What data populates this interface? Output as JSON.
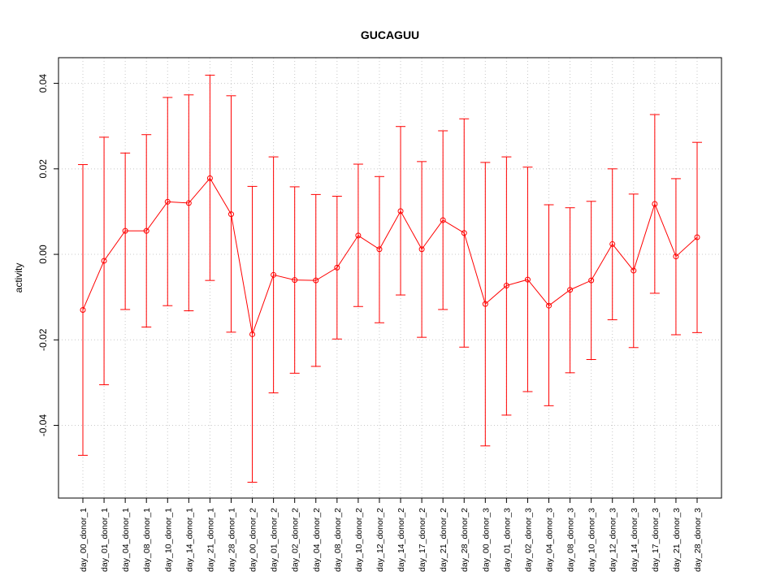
{
  "chart_data": {
    "type": "line",
    "title": "GUCAGUU",
    "xlabel": "",
    "ylabel": "activity",
    "ylim": [
      -0.057,
      0.046
    ],
    "y_ticks": [
      -0.04,
      -0.02,
      0.0,
      0.02,
      0.04
    ],
    "y_tick_labels": [
      "-0.04",
      "-0.02",
      "0.00",
      "0.02",
      "0.04"
    ],
    "grid": true,
    "grid_style": "dotted",
    "error_bars": true,
    "series_color": "#ff0000",
    "categories": [
      "day_00_donor_1",
      "day_01_donor_1",
      "day_04_donor_1",
      "day_08_donor_1",
      "day_10_donor_1",
      "day_14_donor_1",
      "day_21_donor_1",
      "day_28_donor_1",
      "day_00_donor_2",
      "day_01_donor_2",
      "day_02_donor_2",
      "day_04_donor_2",
      "day_08_donor_2",
      "day_10_donor_2",
      "day_12_donor_2",
      "day_14_donor_2",
      "day_17_donor_2",
      "day_21_donor_2",
      "day_28_donor_2",
      "day_00_donor_3",
      "day_01_donor_3",
      "day_02_donor_3",
      "day_04_donor_3",
      "day_08_donor_3",
      "day_10_donor_3",
      "day_12_donor_3",
      "day_14_donor_3",
      "day_17_donor_3",
      "day_21_donor_3",
      "day_28_donor_3"
    ],
    "values": [
      -0.013,
      -0.0015,
      0.0055,
      0.0055,
      0.0123,
      0.012,
      0.0178,
      0.0094,
      -0.0187,
      -0.0048,
      -0.006,
      -0.0061,
      -0.0031,
      0.0044,
      0.0012,
      0.0101,
      0.0012,
      0.008,
      0.005,
      -0.0116,
      -0.0073,
      -0.0059,
      -0.012,
      -0.0083,
      -0.0061,
      0.0024,
      -0.0038,
      0.0118,
      -0.0005,
      0.004
    ],
    "upper": [
      0.021,
      0.0274,
      0.0237,
      0.028,
      0.0367,
      0.0373,
      0.0419,
      0.0371,
      0.0159,
      0.0228,
      0.0158,
      0.014,
      0.0136,
      0.0211,
      0.0182,
      0.0299,
      0.0217,
      0.0289,
      0.0317,
      0.0215,
      0.0228,
      0.0204,
      0.0116,
      0.0109,
      0.0124,
      0.02,
      0.0141,
      0.0327,
      0.0177,
      0.0262
    ],
    "lower": [
      -0.047,
      -0.0305,
      -0.0129,
      -0.017,
      -0.012,
      -0.0132,
      -0.0061,
      -0.0182,
      -0.0533,
      -0.0324,
      -0.0278,
      -0.0262,
      -0.0198,
      -0.0122,
      -0.016,
      -0.0095,
      -0.0194,
      -0.0129,
      -0.0217,
      -0.0448,
      -0.0376,
      -0.0321,
      -0.0354,
      -0.0277,
      -0.0246,
      -0.0153,
      -0.0218,
      -0.0091,
      -0.0188,
      -0.0183
    ]
  }
}
